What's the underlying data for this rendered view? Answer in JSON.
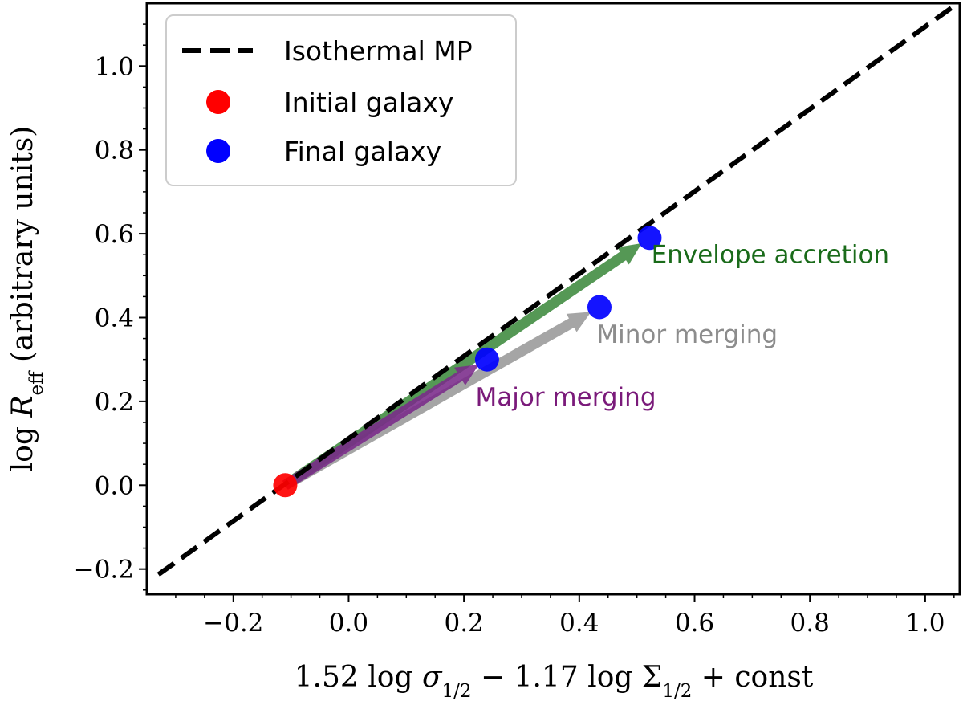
{
  "chart_data": {
    "type": "line",
    "title": "",
    "xlabel": "1.52 log σ1/2 − 1.17 log Σ1/2 + const",
    "ylabel": "log Reff (arbitrary units)",
    "xlim": [
      -0.35,
      1.06
    ],
    "ylim": [
      -0.26,
      1.15
    ],
    "grid": false,
    "legend_position": "top-left",
    "x_ticks": [
      -0.2,
      0.0,
      0.2,
      0.4,
      0.6,
      0.8,
      1.0
    ],
    "y_ticks": [
      -0.2,
      0.0,
      0.2,
      0.4,
      0.6,
      0.8,
      1.0
    ],
    "x_tick_labels": [
      "−0.2",
      "0.0",
      "0.2",
      "0.4",
      "0.6",
      "0.8",
      "1.0"
    ],
    "y_tick_labels": [
      "−0.2",
      "0.0",
      "0.2",
      "0.4",
      "0.6",
      "0.8",
      "1.0"
    ],
    "series": [
      {
        "name": "Isothermal MP",
        "kind": "dashed-line",
        "color": "#000000",
        "x": [
          -0.33,
          1.06
        ],
        "y": [
          -0.213,
          1.153
        ]
      },
      {
        "name": "Initial galaxy",
        "kind": "points",
        "color": "#ff0000",
        "x": [
          -0.11
        ],
        "y": [
          0.0
        ]
      },
      {
        "name": "Final galaxy",
        "kind": "points",
        "color": "#0000ff",
        "x": [
          0.24,
          0.435,
          0.522
        ],
        "y": [
          0.3,
          0.425,
          0.59
        ]
      }
    ],
    "arrows": [
      {
        "label": "Minor merging",
        "color": "#999999",
        "from": [
          -0.11,
          0.0
        ],
        "to": [
          0.435,
          0.425
        ]
      },
      {
        "label": "Envelope accretion",
        "color": "#3d8a3d",
        "from": [
          -0.11,
          0.0
        ],
        "to": [
          0.522,
          0.59
        ]
      },
      {
        "label": "Major merging",
        "color": "#7a2a8a",
        "from": [
          -0.11,
          0.0
        ],
        "to": [
          0.24,
          0.3
        ]
      }
    ],
    "annotations": [
      {
        "text": "Envelope accretion",
        "color": "#1a6b1a",
        "x": 0.525,
        "y": 0.53
      },
      {
        "text": "Minor merging",
        "color": "#8c8c8c",
        "x": 0.43,
        "y": 0.34
      },
      {
        "text": "Major merging",
        "color": "#7a1a7a",
        "x": 0.22,
        "y": 0.19
      }
    ]
  }
}
